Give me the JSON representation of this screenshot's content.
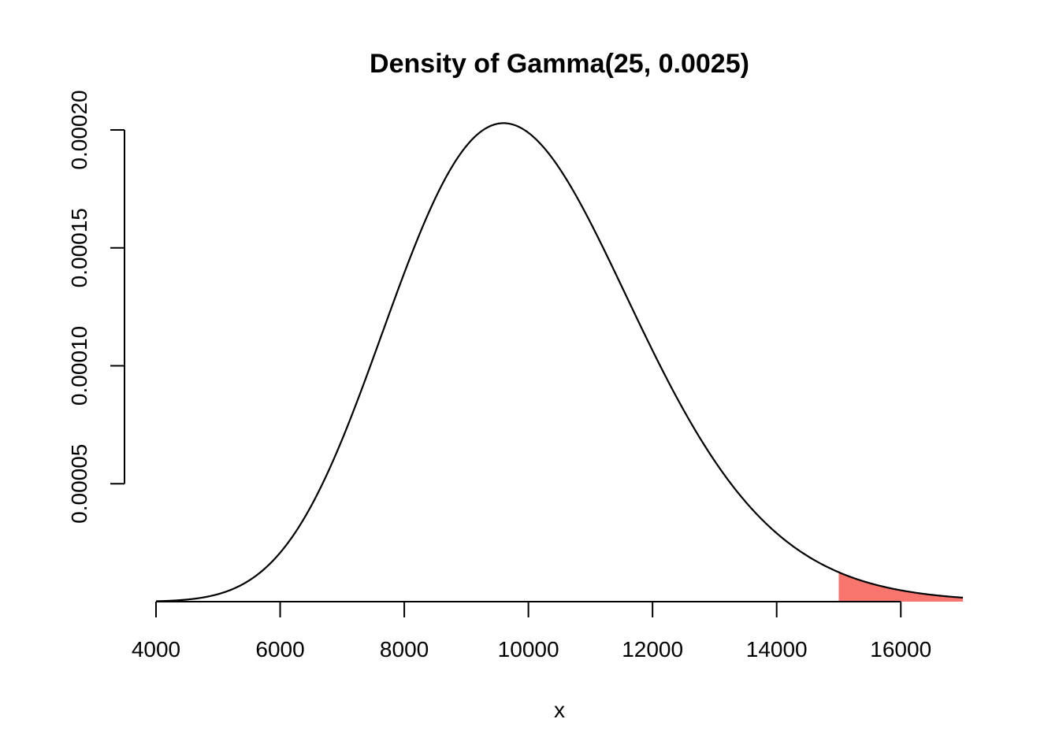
{
  "chart_data": {
    "type": "area",
    "title": "Density of Gamma(25, 0.0025)",
    "xlabel": "x",
    "ylabel": "",
    "distribution": {
      "family": "gamma",
      "shape": 25,
      "rate": 0.0025
    },
    "xlim": [
      4000,
      17000
    ],
    "ylim": [
      0,
      0.0002
    ],
    "x_ticks": [
      "4000",
      "6000",
      "8000",
      "10000",
      "12000",
      "14000",
      "16000"
    ],
    "y_ticks": [
      "0.00005",
      "0.00010",
      "0.00015",
      "0.00020"
    ],
    "x": [
      4000,
      5000,
      6000,
      7000,
      8000,
      9000,
      9600,
      10000,
      11000,
      12000,
      13000,
      14000,
      15000,
      16000,
      17000
    ],
    "y": [
      7e-07,
      8.6e-06,
      4.18e-05,
      0.0001076,
      0.0001735,
      0.0002003,
      0.0002025,
      0.0002015,
      0.0001828,
      0.0001419,
      9.63e-05,
      5.84e-05,
      3.21e-05,
      1.62e-05,
      7.6e-06
    ],
    "shaded_region": {
      "from": 15000,
      "to": 17000,
      "color": "#F8766D"
    },
    "line_color": "#000000",
    "grid": false
  }
}
